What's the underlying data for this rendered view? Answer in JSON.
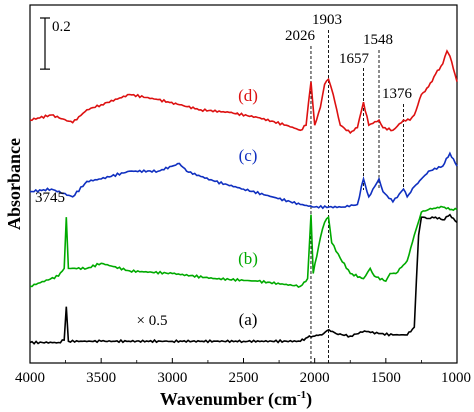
{
  "chart_data": {
    "type": "line",
    "xlabel": "Wavenumber (cm",
    "xlabel_sup": "-1",
    "xlabel_close": ")",
    "ylabel": "Absorbance",
    "xlim": [
      4000,
      1000
    ],
    "x_reversed": true,
    "x_ticks": [
      4000,
      3500,
      3000,
      2500,
      2000,
      1500,
      1000
    ],
    "y_ticks_shown": false,
    "grid": false,
    "scale_bar_label": "0.2",
    "scale_bar_value": 0.2,
    "y_unit_range": [
      -0.05,
      1.35
    ],
    "multiplier_label": "× 0.5",
    "peak_labels": [
      {
        "text": "2026",
        "x": 2026
      },
      {
        "text": "1903",
        "x": 1903
      },
      {
        "text": "1657",
        "x": 1657
      },
      {
        "text": "1548",
        "x": 1548
      },
      {
        "text": "1376",
        "x": 1376
      },
      {
        "text": "3745",
        "x": 3745
      }
    ],
    "dashed_lines_x": [
      2026,
      1903,
      1657,
      1548,
      1376
    ],
    "series": [
      {
        "name": "(a)",
        "color": "#000000",
        "points": [
          [
            4000,
            0.03
          ],
          [
            3800,
            0.03
          ],
          [
            3760,
            0.04
          ],
          [
            3745,
            0.17
          ],
          [
            3730,
            0.035
          ],
          [
            3500,
            0.035
          ],
          [
            3000,
            0.035
          ],
          [
            2500,
            0.035
          ],
          [
            2100,
            0.035
          ],
          [
            2050,
            0.05
          ],
          [
            2000,
            0.055
          ],
          [
            1950,
            0.06
          ],
          [
            1900,
            0.08
          ],
          [
            1850,
            0.065
          ],
          [
            1750,
            0.055
          ],
          [
            1650,
            0.075
          ],
          [
            1550,
            0.065
          ],
          [
            1450,
            0.06
          ],
          [
            1350,
            0.06
          ],
          [
            1300,
            0.09
          ],
          [
            1270,
            0.45
          ],
          [
            1250,
            0.52
          ],
          [
            1200,
            0.515
          ],
          [
            1150,
            0.52
          ],
          [
            1100,
            0.51
          ],
          [
            1050,
            0.53
          ],
          [
            1000,
            0.5
          ]
        ]
      },
      {
        "name": "(b)",
        "color": "#00AA00",
        "points": [
          [
            4000,
            0.25
          ],
          [
            3800,
            0.29
          ],
          [
            3760,
            0.32
          ],
          [
            3745,
            0.52
          ],
          [
            3730,
            0.32
          ],
          [
            3600,
            0.32
          ],
          [
            3500,
            0.34
          ],
          [
            3300,
            0.31
          ],
          [
            3000,
            0.3
          ],
          [
            2700,
            0.28
          ],
          [
            2400,
            0.27
          ],
          [
            2100,
            0.25
          ],
          [
            2050,
            0.28
          ],
          [
            2026,
            0.53
          ],
          [
            2010,
            0.3
          ],
          [
            1960,
            0.44
          ],
          [
            1930,
            0.5
          ],
          [
            1903,
            0.52
          ],
          [
            1880,
            0.42
          ],
          [
            1820,
            0.36
          ],
          [
            1750,
            0.3
          ],
          [
            1657,
            0.28
          ],
          [
            1610,
            0.32
          ],
          [
            1580,
            0.29
          ],
          [
            1500,
            0.27
          ],
          [
            1470,
            0.3
          ],
          [
            1430,
            0.3
          ],
          [
            1350,
            0.35
          ],
          [
            1300,
            0.45
          ],
          [
            1250,
            0.54
          ],
          [
            1200,
            0.55
          ],
          [
            1150,
            0.555
          ],
          [
            1100,
            0.56
          ],
          [
            1050,
            0.55
          ],
          [
            1000,
            0.55
          ]
        ]
      },
      {
        "name": "(c)",
        "color": "#1030C0",
        "points": [
          [
            4000,
            0.62
          ],
          [
            3850,
            0.63
          ],
          [
            3700,
            0.6
          ],
          [
            3600,
            0.66
          ],
          [
            3500,
            0.67
          ],
          [
            3300,
            0.7
          ],
          [
            3100,
            0.7
          ],
          [
            2950,
            0.73
          ],
          [
            2900,
            0.7
          ],
          [
            2700,
            0.66
          ],
          [
            2500,
            0.63
          ],
          [
            2300,
            0.6
          ],
          [
            2100,
            0.57
          ],
          [
            2000,
            0.56
          ],
          [
            1800,
            0.56
          ],
          [
            1700,
            0.57
          ],
          [
            1657,
            0.67
          ],
          [
            1620,
            0.6
          ],
          [
            1548,
            0.67
          ],
          [
            1520,
            0.62
          ],
          [
            1450,
            0.58
          ],
          [
            1376,
            0.63
          ],
          [
            1350,
            0.6
          ],
          [
            1300,
            0.64
          ],
          [
            1250,
            0.67
          ],
          [
            1200,
            0.7
          ],
          [
            1100,
            0.72
          ],
          [
            1050,
            0.77
          ],
          [
            1000,
            0.72
          ]
        ]
      },
      {
        "name": "(d)",
        "color": "#DD1111",
        "points": [
          [
            4000,
            0.9
          ],
          [
            3850,
            0.92
          ],
          [
            3700,
            0.89
          ],
          [
            3600,
            0.94
          ],
          [
            3500,
            0.96
          ],
          [
            3300,
            1.0
          ],
          [
            3100,
            0.98
          ],
          [
            2950,
            0.96
          ],
          [
            2800,
            0.94
          ],
          [
            2600,
            0.93
          ],
          [
            2400,
            0.91
          ],
          [
            2200,
            0.88
          ],
          [
            2100,
            0.86
          ],
          [
            2060,
            0.88
          ],
          [
            2026,
            1.05
          ],
          [
            2000,
            0.88
          ],
          [
            1960,
            0.95
          ],
          [
            1930,
            1.04
          ],
          [
            1903,
            1.06
          ],
          [
            1870,
            1.0
          ],
          [
            1820,
            0.88
          ],
          [
            1750,
            0.85
          ],
          [
            1700,
            0.87
          ],
          [
            1657,
            0.97
          ],
          [
            1620,
            0.88
          ],
          [
            1548,
            0.9
          ],
          [
            1520,
            0.87
          ],
          [
            1450,
            0.86
          ],
          [
            1376,
            0.9
          ],
          [
            1330,
            0.9
          ],
          [
            1300,
            0.92
          ],
          [
            1250,
            1.0
          ],
          [
            1200,
            1.03
          ],
          [
            1150,
            1.08
          ],
          [
            1100,
            1.12
          ],
          [
            1070,
            1.17
          ],
          [
            1050,
            1.15
          ],
          [
            1000,
            1.05
          ]
        ]
      }
    ]
  }
}
